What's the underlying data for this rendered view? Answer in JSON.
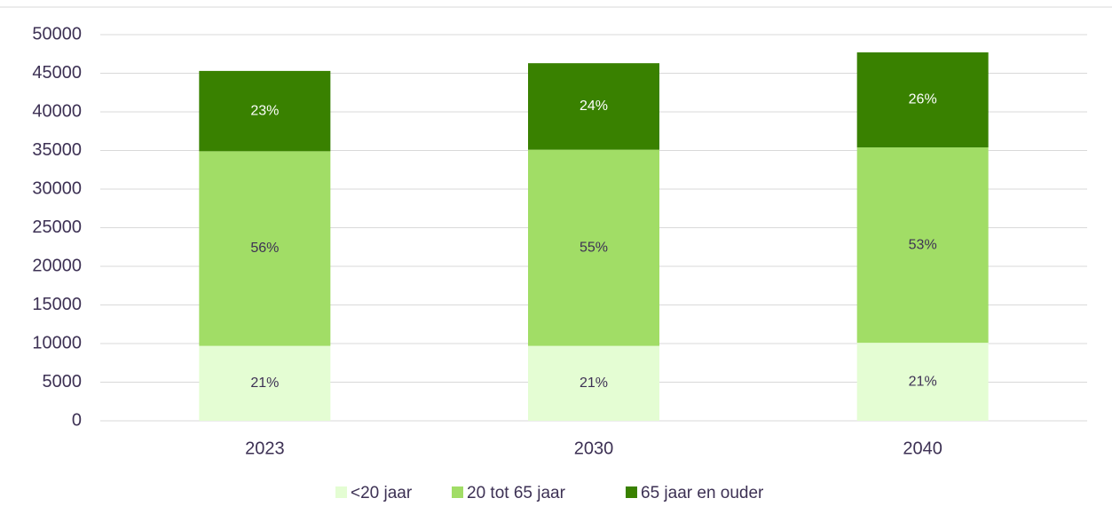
{
  "chart_data": {
    "type": "stacked_bar",
    "categories": [
      "2023",
      "2030",
      "2040"
    ],
    "series": [
      {
        "name": "<20 jaar",
        "color": "#e4fdd3",
        "values": [
          9700,
          9700,
          10100
        ],
        "share_labels": [
          "21%",
          "21%",
          "21%"
        ]
      },
      {
        "name": "20 tot 65 jaar",
        "color": "#a1dd66",
        "values": [
          25200,
          25400,
          25300
        ],
        "share_labels": [
          "56%",
          "55%",
          "53%"
        ]
      },
      {
        "name": "65 jaar en ouder",
        "color": "#398100",
        "values": [
          10400,
          11200,
          12300
        ],
        "share_labels": [
          "23%",
          "24%",
          "26%"
        ]
      }
    ],
    "ylim": [
      0,
      50000
    ],
    "yticks": [
      0,
      5000,
      10000,
      15000,
      20000,
      25000,
      30000,
      35000,
      40000,
      45000,
      50000
    ],
    "grid": true,
    "legend": "bottom"
  }
}
